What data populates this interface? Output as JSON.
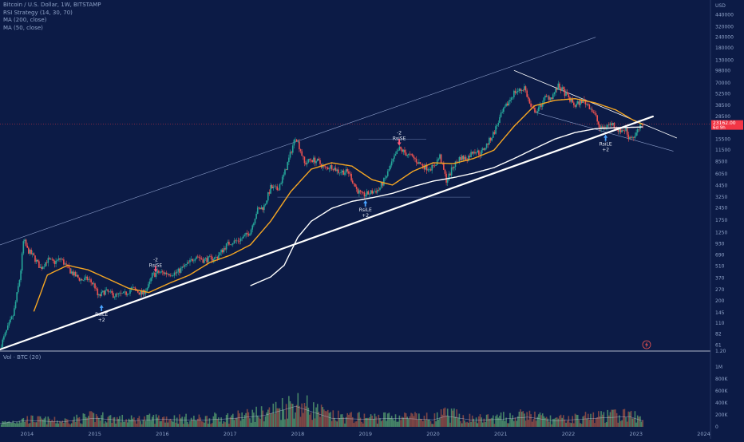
{
  "header": {
    "symbol_line": "Bitcoin / U.S. Dollar, 1W, BITSTAMP",
    "indicators": [
      "RSI Strategy (14, 30, 70)",
      "MA (200, close)",
      "MA (50, close)"
    ]
  },
  "volume_pane": {
    "label": "Vol · BTC (20)",
    "axis_labels": [
      "1M",
      "800K",
      "600K",
      "400K",
      "200K",
      "0"
    ],
    "axis_values": [
      1000000,
      800000,
      600000,
      400000,
      200000,
      0
    ]
  },
  "price_badge": {
    "price": "23162.00",
    "countdown": "6d 9h",
    "color": "#f23645"
  },
  "colors": {
    "background": "#0c1b46",
    "up": "#26a69a",
    "down": "#ef5350",
    "ma50": "#f5a623",
    "ma200": "#ffffff",
    "trendline": "#ffffff"
  },
  "chart_data": {
    "type": "candlestick",
    "title": "Bitcoin / U.S. Dollar, 1W, BITSTAMP",
    "y_scale": "log",
    "y_axis_unit": "USD",
    "ylim": [
      54,
      600000
    ],
    "y_ticks": [
      440000,
      320000,
      240000,
      180000,
      130000,
      98000,
      70000,
      52500,
      38500,
      28500,
      15500,
      11500,
      8500,
      6050,
      4450,
      3250,
      2450,
      1750,
      1250,
      930,
      690,
      510,
      370,
      270,
      200,
      145,
      110,
      82,
      61,
      1.2
    ],
    "y_tick_labels": [
      "440000",
      "320000",
      "240000",
      "180000",
      "130000",
      "98000",
      "70000",
      "52500",
      "38500",
      "28500",
      "15500",
      "11500",
      "8500",
      "6050",
      "4450",
      "3250",
      "2450",
      "1750",
      "1250",
      "930",
      "690",
      "510",
      "370",
      "270",
      "200",
      "145",
      "110",
      "82",
      "61",
      "1.20"
    ],
    "x_ticks": [
      "2014",
      "2015",
      "2016",
      "2017",
      "2018",
      "2019",
      "2020",
      "2021",
      "2022",
      "2023",
      "2024"
    ],
    "x_range": [
      2013.6,
      2024.1
    ],
    "grid": false,
    "price_path": [
      [
        2013.6,
        57
      ],
      [
        2013.7,
        90
      ],
      [
        2013.8,
        140
      ],
      [
        2013.9,
        400
      ],
      [
        2013.95,
        1050
      ],
      [
        2014.0,
        800
      ],
      [
        2014.1,
        650
      ],
      [
        2014.2,
        480
      ],
      [
        2014.3,
        600
      ],
      [
        2014.4,
        560
      ],
      [
        2014.5,
        620
      ],
      [
        2014.6,
        480
      ],
      [
        2014.7,
        400
      ],
      [
        2014.8,
        350
      ],
      [
        2014.9,
        360
      ],
      [
        2015.0,
        300
      ],
      [
        2015.05,
        220
      ],
      [
        2015.15,
        260
      ],
      [
        2015.3,
        230
      ],
      [
        2015.45,
        240
      ],
      [
        2015.55,
        280
      ],
      [
        2015.7,
        240
      ],
      [
        2015.8,
        300
      ],
      [
        2015.85,
        400
      ],
      [
        2015.95,
        430
      ],
      [
        2016.05,
        420
      ],
      [
        2016.2,
        420
      ],
      [
        2016.4,
        560
      ],
      [
        2016.5,
        680
      ],
      [
        2016.6,
        600
      ],
      [
        2016.8,
        640
      ],
      [
        2016.95,
        900
      ],
      [
        2017.0,
        960
      ],
      [
        2017.1,
        1000
      ],
      [
        2017.2,
        1100
      ],
      [
        2017.3,
        1300
      ],
      [
        2017.4,
        2300
      ],
      [
        2017.5,
        2500
      ],
      [
        2017.6,
        4200
      ],
      [
        2017.7,
        4000
      ],
      [
        2017.8,
        6000
      ],
      [
        2017.9,
        11000
      ],
      [
        2017.97,
        17000
      ],
      [
        2018.05,
        11000
      ],
      [
        2018.1,
        8000
      ],
      [
        2018.2,
        9000
      ],
      [
        2018.3,
        8500
      ],
      [
        2018.4,
        7000
      ],
      [
        2018.5,
        7500
      ],
      [
        2018.6,
        6500
      ],
      [
        2018.75,
        6400
      ],
      [
        2018.87,
        4000
      ],
      [
        2018.95,
        3400
      ],
      [
        2019.05,
        3600
      ],
      [
        2019.2,
        4000
      ],
      [
        2019.3,
        5500
      ],
      [
        2019.4,
        8500
      ],
      [
        2019.5,
        12000
      ],
      [
        2019.6,
        10500
      ],
      [
        2019.7,
        9500
      ],
      [
        2019.8,
        8000
      ],
      [
        2019.9,
        7200
      ],
      [
        2020.0,
        7200
      ],
      [
        2020.1,
        9800
      ],
      [
        2020.2,
        5000
      ],
      [
        2020.3,
        7500
      ],
      [
        2020.4,
        9500
      ],
      [
        2020.5,
        9200
      ],
      [
        2020.6,
        11500
      ],
      [
        2020.7,
        10500
      ],
      [
        2020.8,
        13500
      ],
      [
        2020.9,
        18500
      ],
      [
        2021.0,
        29000
      ],
      [
        2021.1,
        40000
      ],
      [
        2021.2,
        55000
      ],
      [
        2021.3,
        58000
      ],
      [
        2021.35,
        63000
      ],
      [
        2021.45,
        35000
      ],
      [
        2021.55,
        33000
      ],
      [
        2021.65,
        47000
      ],
      [
        2021.75,
        48000
      ],
      [
        2021.85,
        64000
      ],
      [
        2021.92,
        57000
      ],
      [
        2022.0,
        47000
      ],
      [
        2022.1,
        38000
      ],
      [
        2022.2,
        44000
      ],
      [
        2022.3,
        39000
      ],
      [
        2022.4,
        29000
      ],
      [
        2022.47,
        20000
      ],
      [
        2022.55,
        22000
      ],
      [
        2022.65,
        23500
      ],
      [
        2022.75,
        19500
      ],
      [
        2022.85,
        20000
      ],
      [
        2022.88,
        16500
      ],
      [
        2022.98,
        16500
      ],
      [
        2023.05,
        21000
      ],
      [
        2023.1,
        23162
      ]
    ],
    "ma50_path": [
      [
        2014.1,
        150
      ],
      [
        2014.3,
        400
      ],
      [
        2014.6,
        520
      ],
      [
        2014.9,
        460
      ],
      [
        2015.2,
        360
      ],
      [
        2015.5,
        280
      ],
      [
        2015.8,
        250
      ],
      [
        2016.1,
        320
      ],
      [
        2016.4,
        400
      ],
      [
        2016.7,
        560
      ],
      [
        2017.0,
        680
      ],
      [
        2017.3,
        900
      ],
      [
        2017.6,
        1700
      ],
      [
        2017.9,
        3800
      ],
      [
        2018.2,
        6900
      ],
      [
        2018.5,
        8200
      ],
      [
        2018.8,
        7500
      ],
      [
        2019.1,
        5200
      ],
      [
        2019.4,
        4500
      ],
      [
        2019.7,
        6500
      ],
      [
        2020.0,
        8200
      ],
      [
        2020.3,
        8000
      ],
      [
        2020.6,
        9200
      ],
      [
        2020.9,
        11500
      ],
      [
        2021.2,
        22000
      ],
      [
        2021.5,
        38000
      ],
      [
        2021.8,
        44000
      ],
      [
        2022.1,
        46000
      ],
      [
        2022.4,
        41000
      ],
      [
        2022.7,
        34000
      ],
      [
        2022.95,
        26000
      ],
      [
        2023.1,
        23000
      ]
    ],
    "ma200_path": [
      [
        2017.3,
        300
      ],
      [
        2017.6,
        380
      ],
      [
        2017.8,
        520
      ],
      [
        2018.0,
        1100
      ],
      [
        2018.2,
        1700
      ],
      [
        2018.5,
        2400
      ],
      [
        2018.8,
        2900
      ],
      [
        2019.1,
        3200
      ],
      [
        2019.4,
        3600
      ],
      [
        2019.7,
        4300
      ],
      [
        2020.0,
        5000
      ],
      [
        2020.3,
        5500
      ],
      [
        2020.6,
        6200
      ],
      [
        2020.9,
        7200
      ],
      [
        2021.2,
        9200
      ],
      [
        2021.5,
        12000
      ],
      [
        2021.8,
        15500
      ],
      [
        2022.1,
        18500
      ],
      [
        2022.4,
        20500
      ],
      [
        2022.7,
        21000
      ],
      [
        2022.95,
        21300
      ],
      [
        2023.1,
        21500
      ]
    ],
    "trendlines": [
      {
        "name": "long-term support",
        "from": [
          2013.6,
          54
        ],
        "to": [
          2023.25,
          28500
        ],
        "color": "#ffffff",
        "width": 2.2
      },
      {
        "name": "upper channel",
        "from": [
          2013.6,
          900
        ],
        "to": [
          2022.4,
          240000
        ],
        "color": "#8a9cc8",
        "width": 0.6
      },
      {
        "name": "descending resistance",
        "from": [
          2021.2,
          98000
        ],
        "to": [
          2023.6,
          16000
        ],
        "color": "#ffffff",
        "width": 0.8
      },
      {
        "name": "lower descending",
        "from": [
          2021.5,
          32000
        ],
        "to": [
          2023.55,
          11200
        ],
        "color": "#8a9cc8",
        "width": 0.6
      }
    ],
    "horizontal_lines": [
      {
        "y": 3250,
        "from": 2017.7,
        "to": 2020.55
      },
      {
        "y": 15500,
        "from": 2018.9,
        "to": 2019.9
      }
    ],
    "signals": [
      {
        "x": 2015.1,
        "y": 180,
        "text": "RsiLE",
        "qty": "+2",
        "side": "long"
      },
      {
        "x": 2015.9,
        "y": 430,
        "text": "RsiSE",
        "qty": "-2",
        "side": "short"
      },
      {
        "x": 2019.0,
        "y": 3000,
        "text": "RsiLE",
        "qty": "+2",
        "side": "long"
      },
      {
        "x": 2019.5,
        "y": 13000,
        "text": "RsiSE",
        "qty": "-2",
        "side": "short"
      },
      {
        "x": 2022.55,
        "y": 17500,
        "text": "RsiLE",
        "qty": "+2",
        "side": "long"
      }
    ],
    "volume_path": [
      [
        2013.6,
        60000
      ],
      [
        2014.0,
        120000
      ],
      [
        2014.5,
        90000
      ],
      [
        2015.0,
        160000
      ],
      [
        2015.5,
        110000
      ],
      [
        2016.0,
        140000
      ],
      [
        2016.5,
        120000
      ],
      [
        2017.0,
        150000
      ],
      [
        2017.5,
        210000
      ],
      [
        2017.97,
        380000
      ],
      [
        2018.5,
        160000
      ],
      [
        2019.0,
        140000
      ],
      [
        2019.5,
        160000
      ],
      [
        2020.0,
        130000
      ],
      [
        2020.2,
        200000
      ],
      [
        2020.6,
        120000
      ],
      [
        2021.0,
        140000
      ],
      [
        2021.4,
        180000
      ],
      [
        2021.8,
        110000
      ],
      [
        2022.4,
        160000
      ],
      [
        2022.9,
        190000
      ],
      [
        2023.1,
        110000
      ]
    ]
  }
}
